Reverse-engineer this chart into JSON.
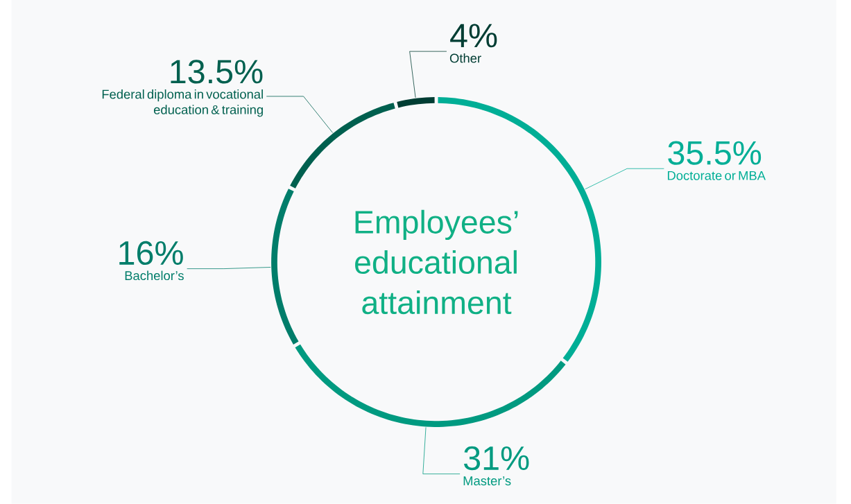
{
  "chart_data": {
    "type": "donut",
    "title": "Employees’ educational attainment",
    "categories": [
      "Doctorate or MBA",
      "Master’s",
      "Bachelor’s",
      "Federal diploma in vocational education & training",
      "Other"
    ],
    "values": [
      35.5,
      31,
      16,
      13.5,
      4
    ],
    "value_labels": [
      "35.5%",
      "31%",
      "16%",
      "13.5%",
      "4%"
    ],
    "colors": [
      "#00ae96",
      "#009a80",
      "#007d6a",
      "#00604f",
      "#003d33"
    ]
  }
}
